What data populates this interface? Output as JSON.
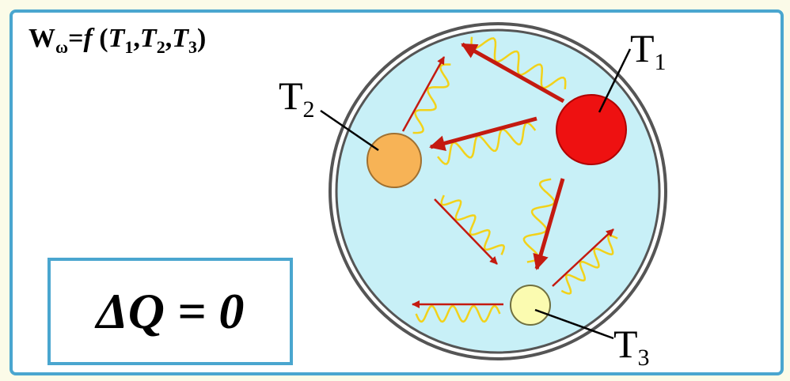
{
  "formula": {
    "w": "W",
    "w_sub": "ω",
    "eq": "=",
    "f": "f",
    "args_open": " (",
    "t1": "T",
    "t1_sub": "1",
    "sep1": ",",
    "t2": "T",
    "t2_sub": "2",
    "sep2": ",",
    "t3": "T",
    "t3_sub": "3",
    "args_close": ")"
  },
  "energy_balance": "ΔQ = 0",
  "bodies": [
    {
      "label": "T",
      "subscript": "1",
      "color": "#ee1111"
    },
    {
      "label": "T",
      "subscript": "2",
      "color": "#f7b356"
    },
    {
      "label": "T",
      "subscript": "3",
      "color": "#fbfbb0"
    }
  ],
  "colors": {
    "frame_border": "#4aa6cf",
    "enclosure_fill": "#c8f0f7",
    "arrow": "#c41a10",
    "wave": "#f2d21a"
  }
}
